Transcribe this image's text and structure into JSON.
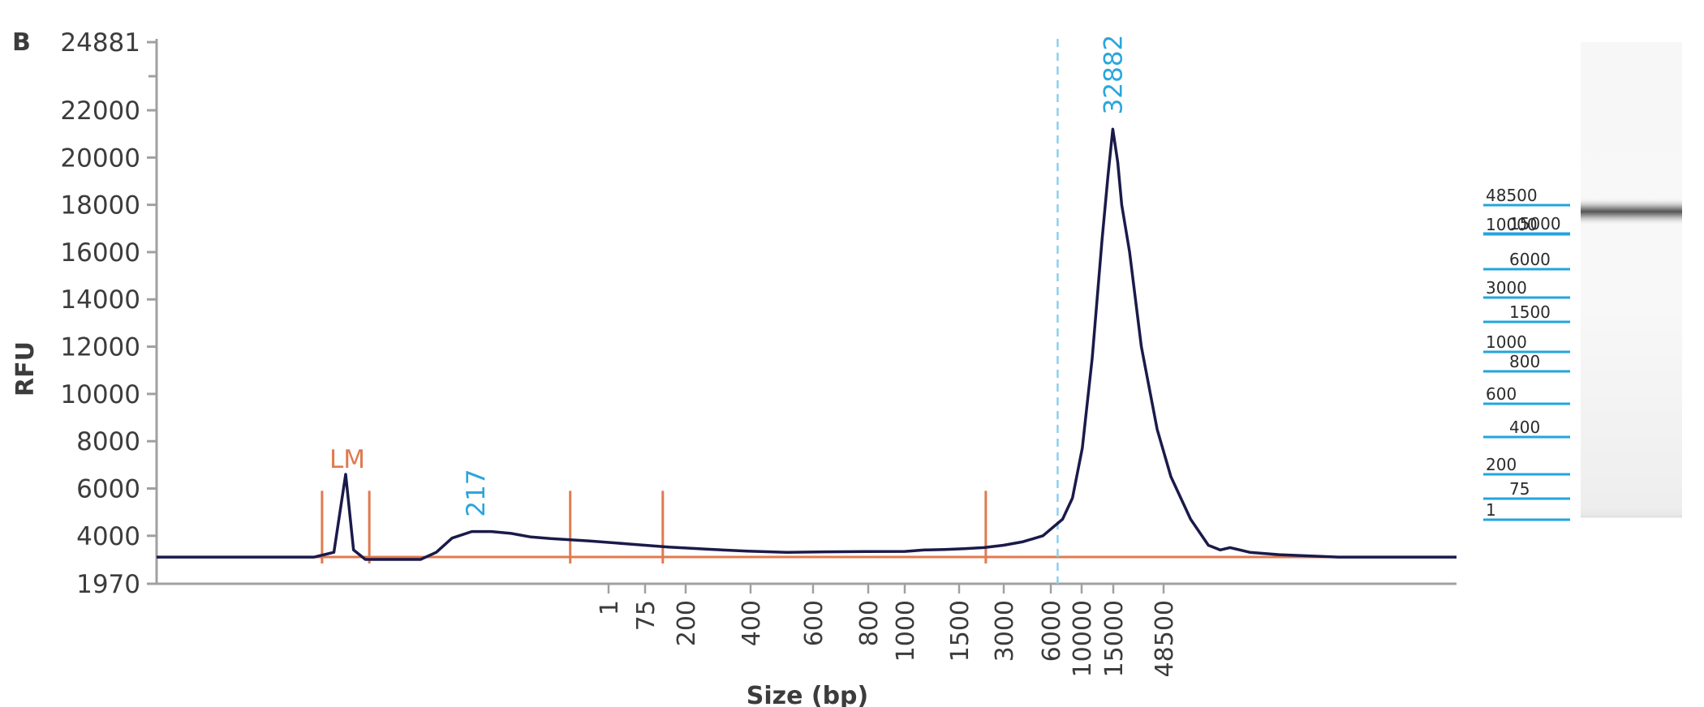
{
  "panel_label": "B",
  "chart_data": {
    "type": "line",
    "xlabel": "Size (bp)",
    "ylabel": "RFU",
    "y_ticks": [
      "1970",
      "4000",
      "6000",
      "8000",
      "10000",
      "12000",
      "14000",
      "16000",
      "18000",
      "20000",
      "22000",
      "24881"
    ],
    "ylim": [
      1970,
      24881
    ],
    "x_ticks": [
      "1",
      "75",
      "200",
      "400",
      "600",
      "800",
      "1000",
      "1500",
      "3000",
      "6000",
      "10000",
      "15000",
      "48500"
    ],
    "series": [
      {
        "points": [
          [
            0,
            3100
          ],
          [
            8,
            3100
          ],
          [
            9,
            3300
          ],
          [
            9.6,
            6600
          ],
          [
            10,
            3400
          ],
          [
            10.6,
            3000
          ],
          [
            11.5,
            3000
          ],
          [
            13.4,
            3000
          ],
          [
            14.2,
            3300
          ],
          [
            15,
            3900
          ],
          [
            16,
            4180
          ],
          [
            17,
            4180
          ],
          [
            18,
            4100
          ],
          [
            19,
            3950
          ],
          [
            20,
            3880
          ],
          [
            22,
            3780
          ],
          [
            24,
            3650
          ],
          [
            26,
            3520
          ],
          [
            28,
            3430
          ],
          [
            30,
            3350
          ],
          [
            32,
            3300
          ],
          [
            34,
            3320
          ],
          [
            36,
            3330
          ],
          [
            38,
            3340
          ],
          [
            39,
            3400
          ],
          [
            40,
            3420
          ],
          [
            41,
            3450
          ],
          [
            42,
            3500
          ],
          [
            43,
            3600
          ],
          [
            44,
            3750
          ],
          [
            45,
            4000
          ],
          [
            46,
            4700
          ],
          [
            46.5,
            5600
          ],
          [
            47,
            7700
          ],
          [
            47.5,
            11500
          ],
          [
            48,
            16500
          ],
          [
            48.3,
            19200
          ],
          [
            48.55,
            21200
          ],
          [
            48.8,
            19800
          ],
          [
            49,
            18000
          ],
          [
            49.4,
            16000
          ],
          [
            50,
            12000
          ],
          [
            50.8,
            8500
          ],
          [
            51.5,
            6500
          ],
          [
            52.5,
            4700
          ],
          [
            53.4,
            3600
          ],
          [
            54,
            3400
          ],
          [
            54.5,
            3500
          ],
          [
            55.5,
            3300
          ],
          [
            57,
            3200
          ],
          [
            60,
            3100
          ],
          [
            66,
            3100
          ]
        ]
      }
    ],
    "peak_labels": [
      {
        "text": "32882",
        "x": 48.55,
        "y": 21200
      },
      {
        "text": "217",
        "x": 16.2,
        "y": 4180
      }
    ],
    "marker_label": {
      "text": "LM",
      "x": 9.6,
      "y": 6600
    },
    "baseline_rfu": 3100,
    "markers_x": [
      8.4,
      10.8,
      21,
      25.7,
      42.1
    ],
    "marker_top_rfu": 5900
  },
  "ladder": {
    "left_labels": [
      "48500",
      "10000",
      "3000",
      "1000",
      "600",
      "200",
      "1"
    ],
    "right_labels": [
      "15000",
      "6000",
      "1500",
      "800",
      "400",
      "75"
    ]
  },
  "colors": {
    "trace": "#1a1a4a",
    "baseline": "#e07a4f",
    "peak_label": "#2aa6dc",
    "ladder_line": "#22a5de",
    "axis": "#a0a0a0"
  }
}
